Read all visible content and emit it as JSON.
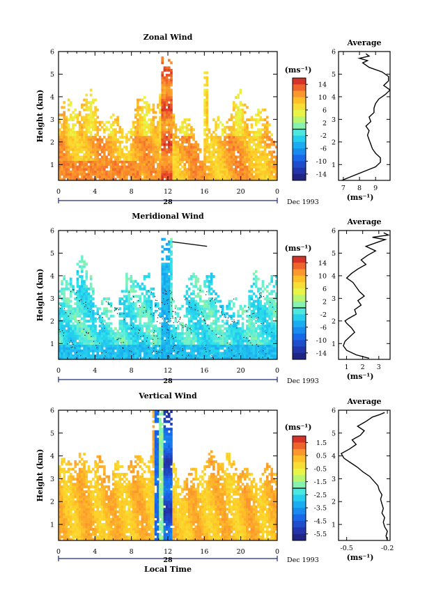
{
  "chart_data": [
    {
      "type": "heatmap",
      "title": "Zonal Wind",
      "ylabel": "Height (km)",
      "xlabel": "",
      "x_ticks": [
        "0",
        "4",
        "8",
        "12",
        "16",
        "20",
        "0"
      ],
      "xlim": [
        0,
        24
      ],
      "y_ticks": [
        "1",
        "2",
        "3",
        "4",
        "5",
        "6"
      ],
      "ylim": [
        0.3,
        6
      ],
      "date_label": "28",
      "date_suffix": "Dec 1993",
      "colorbar": {
        "unit": "(ms⁻¹)",
        "ticks": [
          "14",
          "10",
          "6",
          "2",
          "-2",
          "-6",
          "-10",
          "-14"
        ],
        "range": [
          -16,
          16
        ]
      },
      "profile": {
        "title": "Average",
        "xlabel": "(ms⁻¹)",
        "x_ticks": [
          "7",
          "8",
          "9"
        ],
        "x_tick_values": [
          7,
          8,
          9
        ],
        "xlim": [
          6.7,
          9.9
        ],
        "y_ticks": [
          "1",
          "2",
          "3",
          "4",
          "5",
          "6"
        ],
        "points": [
          [
            6.9,
            0.3
          ],
          [
            7.6,
            0.5
          ],
          [
            8.3,
            0.7
          ],
          [
            9.0,
            0.9
          ],
          [
            9.3,
            1.1
          ],
          [
            9.3,
            1.3
          ],
          [
            9.0,
            1.5
          ],
          [
            8.8,
            1.7
          ],
          [
            8.7,
            1.9
          ],
          [
            8.6,
            2.1
          ],
          [
            8.5,
            2.3
          ],
          [
            8.6,
            2.5
          ],
          [
            8.4,
            2.7
          ],
          [
            8.7,
            2.9
          ],
          [
            8.6,
            3.1
          ],
          [
            8.9,
            3.3
          ],
          [
            8.9,
            3.5
          ],
          [
            9.0,
            3.7
          ],
          [
            9.2,
            3.9
          ],
          [
            9.6,
            4.1
          ],
          [
            9.9,
            4.3
          ],
          [
            9.5,
            4.5
          ],
          [
            9.8,
            4.7
          ],
          [
            9.8,
            4.9
          ],
          [
            9.4,
            5.1
          ],
          [
            8.6,
            5.3
          ],
          [
            8.2,
            5.5
          ],
          [
            8.5,
            5.6
          ],
          [
            8.0,
            5.7
          ],
          [
            8.6,
            5.8
          ],
          [
            8.4,
            5.9
          ]
        ]
      }
    },
    {
      "type": "heatmap",
      "title": "Meridional Wind",
      "ylabel": "Height (km)",
      "xlabel": "",
      "x_ticks": [
        "0",
        "4",
        "8",
        "12",
        "16",
        "20",
        "0"
      ],
      "xlim": [
        0,
        24
      ],
      "y_ticks": [
        "1",
        "2",
        "3",
        "4",
        "5",
        "6"
      ],
      "ylim": [
        0.3,
        6
      ],
      "date_label": "28",
      "date_suffix": "Dec 1993",
      "colorbar": {
        "unit": "(ms⁻¹)",
        "ticks": [
          "14",
          "10",
          "6",
          "2",
          "-2",
          "-6",
          "-10",
          "-14"
        ],
        "range": [
          -16,
          16
        ]
      },
      "profile": {
        "title": "Average",
        "xlabel": "(ms⁻¹)",
        "x_ticks": [
          "1",
          "2",
          "3"
        ],
        "x_tick_values": [
          1,
          2,
          3
        ],
        "xlim": [
          0.5,
          3.7
        ],
        "y_ticks": [
          "1",
          "2",
          "3",
          "4",
          "5",
          "6"
        ],
        "points": [
          [
            2.4,
            0.35
          ],
          [
            1.6,
            0.5
          ],
          [
            1.0,
            0.7
          ],
          [
            0.8,
            0.9
          ],
          [
            0.9,
            1.1
          ],
          [
            1.2,
            1.3
          ],
          [
            1.5,
            1.5
          ],
          [
            1.3,
            1.7
          ],
          [
            1.0,
            1.9
          ],
          [
            0.9,
            2.0
          ],
          [
            1.1,
            2.1
          ],
          [
            1.6,
            2.3
          ],
          [
            1.5,
            2.5
          ],
          [
            1.9,
            2.7
          ],
          [
            1.7,
            2.9
          ],
          [
            2.1,
            3.1
          ],
          [
            1.8,
            3.3
          ],
          [
            1.6,
            3.5
          ],
          [
            1.4,
            3.7
          ],
          [
            1.0,
            3.9
          ],
          [
            1.3,
            4.1
          ],
          [
            1.7,
            4.3
          ],
          [
            2.2,
            4.5
          ],
          [
            1.9,
            4.7
          ],
          [
            2.3,
            4.9
          ],
          [
            2.8,
            5.1
          ],
          [
            2.2,
            5.3
          ],
          [
            3.0,
            5.5
          ],
          [
            3.4,
            5.6
          ],
          [
            2.6,
            5.7
          ],
          [
            3.6,
            5.8
          ],
          [
            3.3,
            5.9
          ]
        ]
      }
    },
    {
      "type": "heatmap",
      "title": "Vertical Wind",
      "ylabel": "Height (km)",
      "xlabel": "Local Time",
      "x_ticks": [
        "0",
        "4",
        "8",
        "12",
        "16",
        "20",
        "0"
      ],
      "xlim": [
        0,
        24
      ],
      "y_ticks": [
        "1",
        "2",
        "3",
        "4",
        "5",
        "6"
      ],
      "ylim": [
        0.3,
        6
      ],
      "date_label": "28",
      "date_suffix": "Dec 1993",
      "colorbar": {
        "unit": "(ms⁻¹)",
        "ticks": [
          "1.5",
          "0.5",
          "-0.5",
          "-1.5",
          "-2.5",
          "-3.5",
          "-4.5",
          "-5.5"
        ],
        "range": [
          -6,
          2
        ]
      },
      "profile": {
        "title": "Average",
        "xlabel": "(ms⁻¹)",
        "x_ticks": [
          "-0.5",
          "-0.2"
        ],
        "x_tick_values": [
          -0.5,
          -0.2
        ],
        "xlim": [
          -0.56,
          -0.18
        ],
        "y_ticks": [
          "1",
          "2",
          "3",
          "4",
          "5",
          "6"
        ],
        "points": [
          [
            -0.2,
            0.3
          ],
          [
            -0.21,
            0.5
          ],
          [
            -0.2,
            0.7
          ],
          [
            -0.22,
            0.9
          ],
          [
            -0.23,
            1.1
          ],
          [
            -0.22,
            1.3
          ],
          [
            -0.24,
            1.5
          ],
          [
            -0.23,
            1.7
          ],
          [
            -0.24,
            1.9
          ],
          [
            -0.25,
            2.1
          ],
          [
            -0.24,
            2.3
          ],
          [
            -0.26,
            2.5
          ],
          [
            -0.27,
            2.7
          ],
          [
            -0.3,
            2.9
          ],
          [
            -0.33,
            3.1
          ],
          [
            -0.38,
            3.3
          ],
          [
            -0.42,
            3.5
          ],
          [
            -0.47,
            3.7
          ],
          [
            -0.52,
            3.9
          ],
          [
            -0.54,
            4.1
          ],
          [
            -0.48,
            4.3
          ],
          [
            -0.43,
            4.5
          ],
          [
            -0.46,
            4.7
          ],
          [
            -0.4,
            4.9
          ],
          [
            -0.37,
            5.1
          ],
          [
            -0.42,
            5.3
          ],
          [
            -0.36,
            5.5
          ],
          [
            -0.31,
            5.7
          ],
          [
            -0.26,
            5.8
          ],
          [
            -0.22,
            5.9
          ]
        ]
      }
    }
  ]
}
